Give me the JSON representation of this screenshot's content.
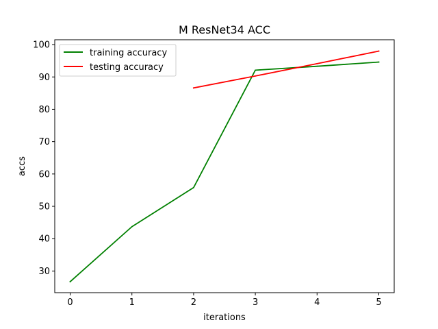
{
  "chart_data": {
    "type": "line",
    "title": "M ResNet34 ACC",
    "xlabel": "iterations",
    "ylabel": "accs",
    "xlim": [
      -0.25,
      5.25
    ],
    "ylim": [
      23.3,
      101.5
    ],
    "x_ticks": [
      0,
      1,
      2,
      3,
      4,
      5
    ],
    "y_ticks": [
      30,
      40,
      50,
      60,
      70,
      80,
      90,
      100
    ],
    "grid": false,
    "legend_position": "top-left",
    "series": [
      {
        "name": "training accuracy",
        "color": "#008000",
        "x": [
          0,
          1,
          2,
          3,
          4,
          5
        ],
        "y": [
          26.7,
          43.7,
          55.8,
          92.1,
          93.3,
          94.6
        ]
      },
      {
        "name": "testing accuracy",
        "color": "#ff0000",
        "x": [
          2,
          3,
          4,
          5
        ],
        "y": [
          86.6,
          90.3,
          94.1,
          98.0
        ]
      }
    ]
  }
}
